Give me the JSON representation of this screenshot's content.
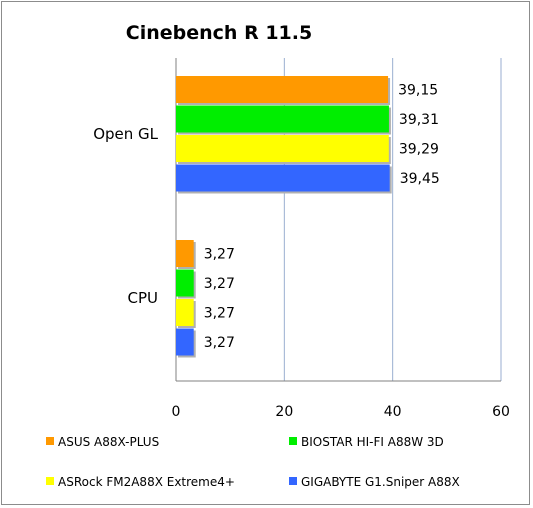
{
  "chart_data": {
    "type": "bar",
    "orientation": "horizontal",
    "title": "Cinebench R 11.5",
    "categories": [
      "Open GL",
      "CPU"
    ],
    "series": [
      {
        "name": "ASUS A88X-PLUS",
        "color": "#ff9900",
        "values": [
          39.15,
          3.27
        ],
        "labels": [
          "39,15",
          "3,27"
        ]
      },
      {
        "name": "BIOSTAR HI-FI A88W 3D",
        "color": "#00ee00",
        "values": [
          39.31,
          3.27
        ],
        "labels": [
          "39,31",
          "3,27"
        ]
      },
      {
        "name": "ASRock FM2A88X Extreme4+",
        "color": "#ffff00",
        "values": [
          39.29,
          3.27
        ],
        "labels": [
          "39,29",
          "3,27"
        ]
      },
      {
        "name": "GIGABYTE G1.Sniper A88X",
        "color": "#3366ff",
        "values": [
          39.45,
          3.27
        ],
        "labels": [
          "39,45",
          "3,27"
        ]
      }
    ],
    "xlim": [
      0,
      60
    ],
    "xticks": [
      0,
      20,
      40,
      60
    ],
    "xtick_labels": [
      "0",
      "20",
      "40",
      "60"
    ],
    "grid": true,
    "legend_position": "bottom"
  }
}
